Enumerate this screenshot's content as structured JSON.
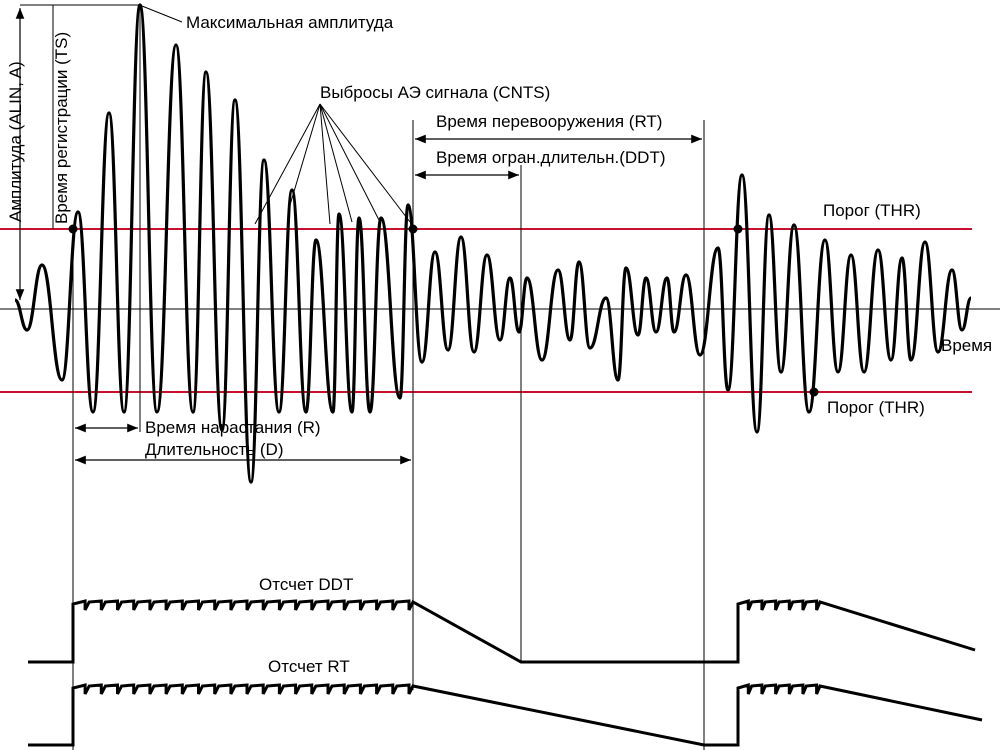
{
  "labels": {
    "max_amplitude": "Максимальная  амплитуда",
    "ae_hits": "Выбросы АЭ сигнала (CNTS)",
    "rearm_time": "Время перевооружения (RT)",
    "ddt": "Время огран.длительн.(DDT)",
    "threshold_top": "Порог (THR)",
    "threshold_bottom": "Порог (THR)",
    "time_axis": "Время",
    "amplitude_axis": "Амплитуда (ALIN, A)",
    "arrival_time": "Время регистрации (TS)",
    "rise_time": "Время нарастания (R)",
    "duration": "Длительность (D)",
    "ddt_count": "Отсчет DDT",
    "rt_count": "Отсчет RT"
  },
  "colors": {
    "threshold": "#c8102e",
    "signal": "#000000"
  }
}
